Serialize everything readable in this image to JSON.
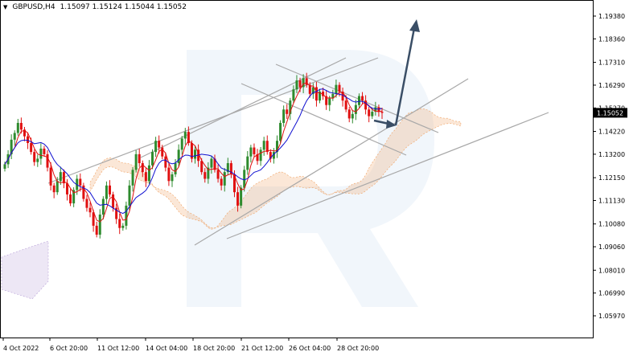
{
  "header": {
    "symbol": "GBPUSD,H4",
    "ohlc": "1.15097 1.15124 1.15044 1.15052"
  },
  "colors": {
    "bull": "#2e8b2e",
    "bear": "#e01010",
    "tenkan": "#e01010",
    "kijun": "#1010d0",
    "cloud_up": "#f0a060",
    "cloud_dn": "#b8a0d8",
    "trend": "#a8a8a8",
    "arrow": "#3a4e66",
    "price_box": "#000000",
    "watermark": "#e6eef8"
  },
  "chart_data": {
    "type": "candlestick",
    "ylim": [
      1.0597,
      1.2038
    ],
    "y_ticks": [
      "1.19380",
      "1.18360",
      "1.17310",
      "1.16290",
      "1.15270",
      "1.14220",
      "1.13200",
      "1.12150",
      "1.11130",
      "1.10080",
      "1.09060",
      "1.08010",
      "1.06990",
      "1.05970"
    ],
    "current_price": "1.15052",
    "x_ticks": [
      "4 Oct 2022",
      "6 Oct 20:00",
      "11 Oct 12:00",
      "14 Oct 04:00",
      "18 Oct 20:00",
      "21 Oct 12:00",
      "26 Oct 04:00",
      "28 Oct 20:00"
    ],
    "candles_close": [
      1.1275,
      1.132,
      1.1385,
      1.1415,
      1.146,
      1.143,
      1.14,
      1.137,
      1.133,
      1.1285,
      1.13,
      1.1345,
      1.132,
      1.126,
      1.118,
      1.115,
      1.12,
      1.124,
      1.119,
      1.114,
      1.11,
      1.116,
      1.121,
      1.118,
      1.112,
      1.108,
      1.106,
      1.1,
      1.096,
      1.105,
      1.112,
      1.118,
      1.114,
      1.108,
      1.103,
      1.099,
      1.1,
      1.109,
      1.118,
      1.125,
      1.132,
      1.128,
      1.124,
      1.12,
      1.127,
      1.133,
      1.138,
      1.135,
      1.131,
      1.126,
      1.12,
      1.123,
      1.128,
      1.134,
      1.139,
      1.142,
      1.137,
      1.13,
      1.134,
      1.129,
      1.124,
      1.121,
      1.126,
      1.13,
      1.125,
      1.121,
      1.118,
      1.124,
      1.128,
      1.123,
      1.115,
      1.109,
      1.117,
      1.125,
      1.131,
      1.135,
      1.132,
      1.129,
      1.134,
      1.138,
      1.133,
      1.13,
      1.133,
      1.138,
      1.146,
      1.152,
      1.15,
      1.156,
      1.161,
      1.165,
      1.162,
      1.166,
      1.163,
      1.159,
      1.162,
      1.156,
      1.16,
      1.158,
      1.154,
      1.157,
      1.159,
      1.163,
      1.16,
      1.156,
      1.152,
      1.148,
      1.15,
      1.154,
      1.158,
      1.156,
      1.152,
      1.149,
      1.151,
      1.153,
      1.151,
      1.1505
    ],
    "trendlines": [
      {
        "x": [
          "4 Oct 2022",
          "28 Oct 20:00"
        ],
        "y": [
          1.129,
          1.177
        ]
      },
      {
        "x": [
          "14 Oct 04:00",
          "28 Oct 20:00"
        ],
        "y": [
          1.11,
          1.174
        ]
      },
      {
        "x": [
          "18 Oct 20:00",
          "28 Oct 20:00"
        ],
        "y": [
          1.102,
          1.15
        ]
      },
      {
        "x": [
          "18 Oct 20:00",
          "28 Oct 20:00"
        ],
        "y": [
          1.099,
          1.152
        ]
      },
      {
        "x": [
          "21 Oct 12:00",
          "28 Oct 20:00"
        ],
        "y": [
          1.172,
          1.149
        ]
      },
      {
        "x": [
          "21 Oct 12:00",
          "28 Oct 20:00"
        ],
        "y": [
          1.164,
          1.145
        ]
      }
    ],
    "forecast_arrow": {
      "from": [
        1.149,
        1.149
      ],
      "to": [
        1.15,
        1.196
      ]
    },
    "grid": false,
    "legend": "none",
    "indicator": "Ichimoku Kinko Hyo"
  }
}
